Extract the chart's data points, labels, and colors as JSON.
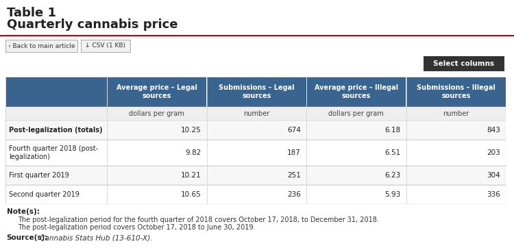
{
  "title_line1": "Table 1",
  "title_line2": "Quarterly cannabis price",
  "col_headers": [
    "Average price – Legal\nsources",
    "Submissions – Legal\nsources",
    "Average price – Illegal\nsources",
    "Submissions – Illegal\nsources"
  ],
  "col_subheaders": [
    "dollars per gram",
    "number",
    "dollars per gram",
    "number"
  ],
  "row_labels": [
    "Post-legalization (totals)",
    "Fourth quarter 2018 (post-\nlegalization)",
    "First quarter 2019",
    "Second quarter 2019"
  ],
  "row_bold": [
    true,
    false,
    false,
    false
  ],
  "data": [
    [
      "10.25",
      "674",
      "6.18",
      "843"
    ],
    [
      "9.82",
      "187",
      "6.51",
      "203"
    ],
    [
      "10.21",
      "251",
      "6.23",
      "304"
    ],
    [
      "10.65",
      "236",
      "5.93",
      "336"
    ]
  ],
  "note_label": "Note(s):",
  "notes": [
    "The post-legalization period for the fourth quarter of 2018 covers October 17, 2018, to December 31, 2018.",
    "The post-legalization period covers October 17, 2018 to June 30, 2019."
  ],
  "source_label": "Source(s):",
  "source_text": " Cannabis Stats Hub (13-610-X).",
  "btn1_text": "‹ Back to main article",
  "btn2_text": "↓ CSV (1 KB)",
  "select_btn_text": "Select columns",
  "header_bg": "#3a6490",
  "header_text": "#ffffff",
  "subheader_bg": "#f0f0f0",
  "subheader_text": "#333333",
  "row_bg_even": "#f7f7f7",
  "row_bg_odd": "#ffffff",
  "border_color": "#cccccc",
  "title_red_line": "#cc0000",
  "bg_color": "#ffffff"
}
